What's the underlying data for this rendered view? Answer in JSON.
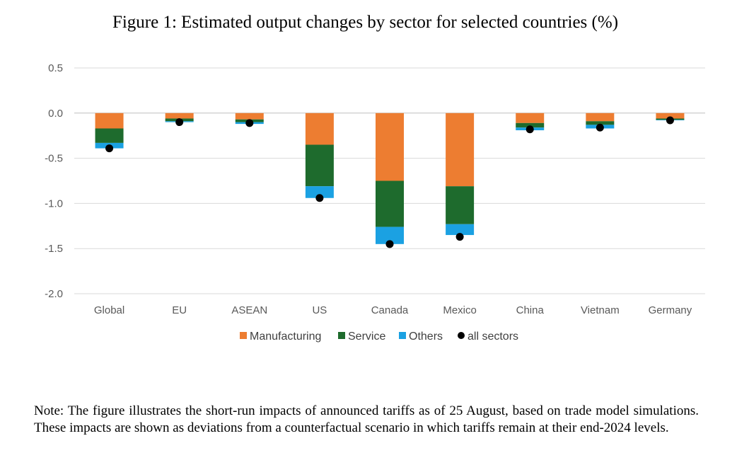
{
  "figure": {
    "title": "Figure 1: Estimated output changes by sector for selected countries (%)",
    "note": "Note: The figure illustrates the short-run impacts of announced tariffs as of 25 August, based on trade model simulations. These impacts are shown as deviations from a counterfactual scenario in which tariffs remain at their end-2024 levels."
  },
  "chart_data": {
    "type": "bar",
    "stacked": true,
    "title": "Figure 1: Estimated output changes by sector for selected countries (%)",
    "categories": [
      "Global",
      "EU",
      "ASEAN",
      "US",
      "Canada",
      "Mexico",
      "China",
      "Vietnam",
      "Germany"
    ],
    "ylim": [
      -2.0,
      0.5
    ],
    "yticks": [
      0.5,
      0.0,
      -0.5,
      -1.0,
      -1.5,
      -2.0
    ],
    "ytick_labels": [
      "0.5",
      "0.0",
      "-0.5",
      "-1.0",
      "-1.5",
      "-2.0"
    ],
    "grid": true,
    "legend_position": "bottom",
    "series": [
      {
        "name": "Manufacturing",
        "kind": "bar",
        "color": "#ED7D31",
        "values": [
          -0.17,
          -0.06,
          -0.07,
          -0.35,
          -0.75,
          -0.81,
          -0.11,
          -0.09,
          -0.06
        ]
      },
      {
        "name": "Service",
        "kind": "bar",
        "color": "#1E6B2D",
        "values": [
          -0.16,
          -0.03,
          -0.03,
          -0.46,
          -0.51,
          -0.42,
          -0.05,
          -0.04,
          -0.015
        ]
      },
      {
        "name": "Others",
        "kind": "bar",
        "color": "#1BA1E2",
        "values": [
          -0.06,
          -0.01,
          -0.02,
          -0.13,
          -0.19,
          -0.12,
          -0.03,
          -0.04,
          -0.005
        ]
      },
      {
        "name": "all sectors",
        "kind": "marker",
        "color": "#000000",
        "values": [
          -0.39,
          -0.1,
          -0.11,
          -0.94,
          -1.45,
          -1.37,
          -0.18,
          -0.16,
          -0.08
        ]
      }
    ]
  }
}
